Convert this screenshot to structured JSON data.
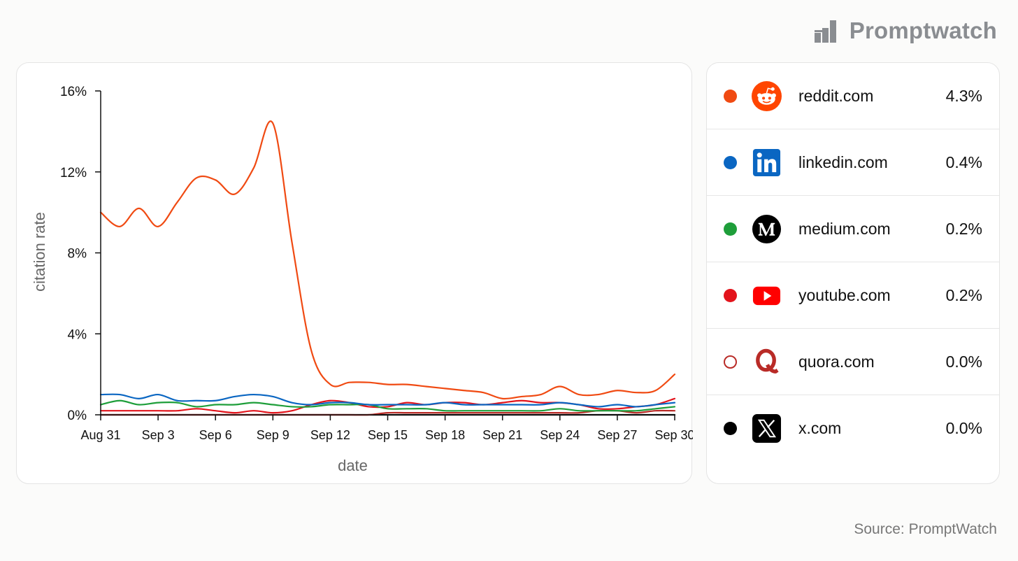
{
  "brand": {
    "name": "Promptwatch",
    "logo_icon": "bar-chart-logo-icon"
  },
  "source": "Source: PromptWatch",
  "chart_data": {
    "type": "line",
    "xlabel": "date",
    "ylabel": "citation rate",
    "ylim": [
      0,
      16
    ],
    "yticks": [
      "0%",
      "4%",
      "8%",
      "12%",
      "16%"
    ],
    "yticks_values": [
      0,
      4,
      8,
      12,
      16
    ],
    "x_tick_labels": [
      "Aug 31",
      "Sep 3",
      "Sep 6",
      "Sep 9",
      "Sep 12",
      "Sep 15",
      "Sep 18",
      "Sep 21",
      "Sep 24",
      "Sep 27",
      "Sep 30"
    ],
    "x_tick_index": [
      0,
      3,
      6,
      9,
      12,
      15,
      18,
      21,
      24,
      27,
      30
    ],
    "x": [
      "Aug 31",
      "Sep 1",
      "Sep 2",
      "Sep 3",
      "Sep 4",
      "Sep 5",
      "Sep 6",
      "Sep 7",
      "Sep 8",
      "Sep 9",
      "Sep 10",
      "Sep 11",
      "Sep 12",
      "Sep 13",
      "Sep 14",
      "Sep 15",
      "Sep 16",
      "Sep 17",
      "Sep 18",
      "Sep 19",
      "Sep 20",
      "Sep 21",
      "Sep 22",
      "Sep 23",
      "Sep 24",
      "Sep 25",
      "Sep 26",
      "Sep 27",
      "Sep 28",
      "Sep 29",
      "Sep 30"
    ],
    "grid": false,
    "legend_position": "right",
    "series": [
      {
        "name": "reddit.com",
        "color": "#f04a12",
        "values": [
          10.0,
          9.3,
          10.2,
          9.3,
          10.5,
          11.7,
          11.6,
          10.9,
          12.2,
          14.4,
          8.5,
          3.2,
          1.5,
          1.6,
          1.6,
          1.5,
          1.5,
          1.4,
          1.3,
          1.2,
          1.1,
          0.8,
          0.9,
          1.0,
          1.4,
          1.0,
          1.0,
          1.2,
          1.1,
          1.2,
          2.0
        ]
      },
      {
        "name": "linkedin.com",
        "color": "#0a66c2",
        "values": [
          1.0,
          1.0,
          0.8,
          1.0,
          0.7,
          0.7,
          0.7,
          0.9,
          1.0,
          0.9,
          0.6,
          0.5,
          0.6,
          0.6,
          0.5,
          0.5,
          0.5,
          0.5,
          0.6,
          0.5,
          0.5,
          0.5,
          0.5,
          0.5,
          0.6,
          0.5,
          0.4,
          0.5,
          0.4,
          0.5,
          0.6
        ]
      },
      {
        "name": "medium.com",
        "color": "#1e9e3a",
        "values": [
          0.5,
          0.7,
          0.5,
          0.6,
          0.6,
          0.4,
          0.5,
          0.5,
          0.6,
          0.5,
          0.4,
          0.4,
          0.5,
          0.5,
          0.5,
          0.3,
          0.3,
          0.3,
          0.2,
          0.2,
          0.2,
          0.2,
          0.2,
          0.2,
          0.3,
          0.2,
          0.2,
          0.2,
          0.2,
          0.3,
          0.4
        ]
      },
      {
        "name": "youtube.com",
        "color": "#e3141c",
        "values": [
          0.2,
          0.2,
          0.2,
          0.2,
          0.2,
          0.3,
          0.2,
          0.1,
          0.2,
          0.1,
          0.2,
          0.5,
          0.7,
          0.6,
          0.4,
          0.4,
          0.6,
          0.5,
          0.6,
          0.6,
          0.5,
          0.6,
          0.7,
          0.6,
          0.6,
          0.5,
          0.3,
          0.3,
          0.4,
          0.5,
          0.8
        ]
      },
      {
        "name": "quora.com",
        "color": "#b92b27",
        "values": [
          0.0,
          0.0,
          0.0,
          0.0,
          0.0,
          0.0,
          0.0,
          0.0,
          0.0,
          0.0,
          0.0,
          0.0,
          0.0,
          0.0,
          0.0,
          0.1,
          0.1,
          0.1,
          0.1,
          0.1,
          0.1,
          0.1,
          0.1,
          0.1,
          0.1,
          0.1,
          0.2,
          0.2,
          0.1,
          0.2,
          0.2
        ]
      },
      {
        "name": "x.com",
        "color": "#000000",
        "values": [
          0.0,
          0.0,
          0.0,
          0.0,
          0.0,
          0.0,
          0.0,
          0.0,
          0.0,
          0.0,
          0.0,
          0.0,
          0.0,
          0.0,
          0.0,
          0.0,
          0.0,
          0.0,
          0.0,
          0.0,
          0.0,
          0.0,
          0.0,
          0.0,
          0.0,
          0.0,
          0.0,
          0.0,
          0.0,
          0.0,
          0.0
        ]
      }
    ]
  },
  "legend": [
    {
      "name": "reddit.com",
      "value": "4.3%",
      "color": "#f04a12",
      "icon": "reddit-icon",
      "dot_style": "filled"
    },
    {
      "name": "linkedin.com",
      "value": "0.4%",
      "color": "#0a66c2",
      "icon": "linkedin-icon",
      "dot_style": "filled"
    },
    {
      "name": "medium.com",
      "value": "0.2%",
      "color": "#1e9e3a",
      "icon": "medium-icon",
      "dot_style": "filled"
    },
    {
      "name": "youtube.com",
      "value": "0.2%",
      "color": "#e3141c",
      "icon": "youtube-icon",
      "dot_style": "filled"
    },
    {
      "name": "quora.com",
      "value": "0.0%",
      "color": "#b92b27",
      "icon": "quora-icon",
      "dot_style": "hollow"
    },
    {
      "name": "x.com",
      "value": "0.0%",
      "color": "#000000",
      "icon": "x-icon",
      "dot_style": "filled"
    }
  ]
}
